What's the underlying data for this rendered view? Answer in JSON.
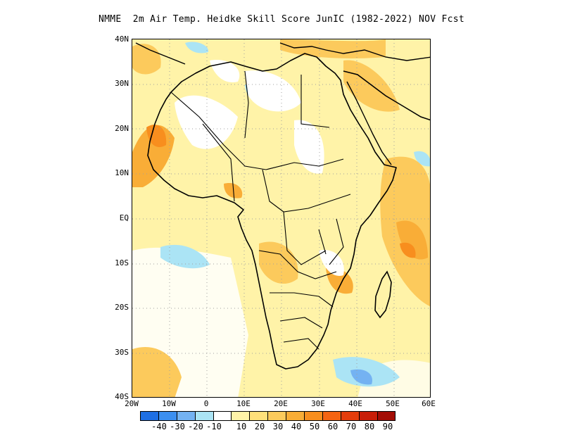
{
  "title": "NMME  2m Air Temp. Heidke Skill Score JunIC (1982-2022) NOV Fcst",
  "lat_labels": [
    "40N",
    "30N",
    "20N",
    "10N",
    "EQ",
    "10S",
    "20S",
    "30S",
    "40S"
  ],
  "lon_labels": [
    "20W",
    "10W",
    "0",
    "10E",
    "20E",
    "30E",
    "40E",
    "50E",
    "60E"
  ],
  "map": {
    "region": "Africa",
    "lat_range": [
      -40,
      40
    ],
    "lon_range": [
      -20,
      60
    ],
    "grid": "dotted"
  },
  "colorbar": {
    "colors": [
      "#1f6fe3",
      "#3c8ff0",
      "#74b2f2",
      "#abe4f5",
      "#ffffff",
      "#fff3a8",
      "#ffe07a",
      "#fcca5c",
      "#f9ad37",
      "#f88e1e",
      "#f56412",
      "#e53d0c",
      "#c81e08",
      "#a30d05"
    ],
    "tick_labels": [
      "-40",
      "-30",
      "-20",
      "-10",
      "10",
      "20",
      "30",
      "40",
      "50",
      "60",
      "70",
      "80",
      "90"
    ]
  }
}
